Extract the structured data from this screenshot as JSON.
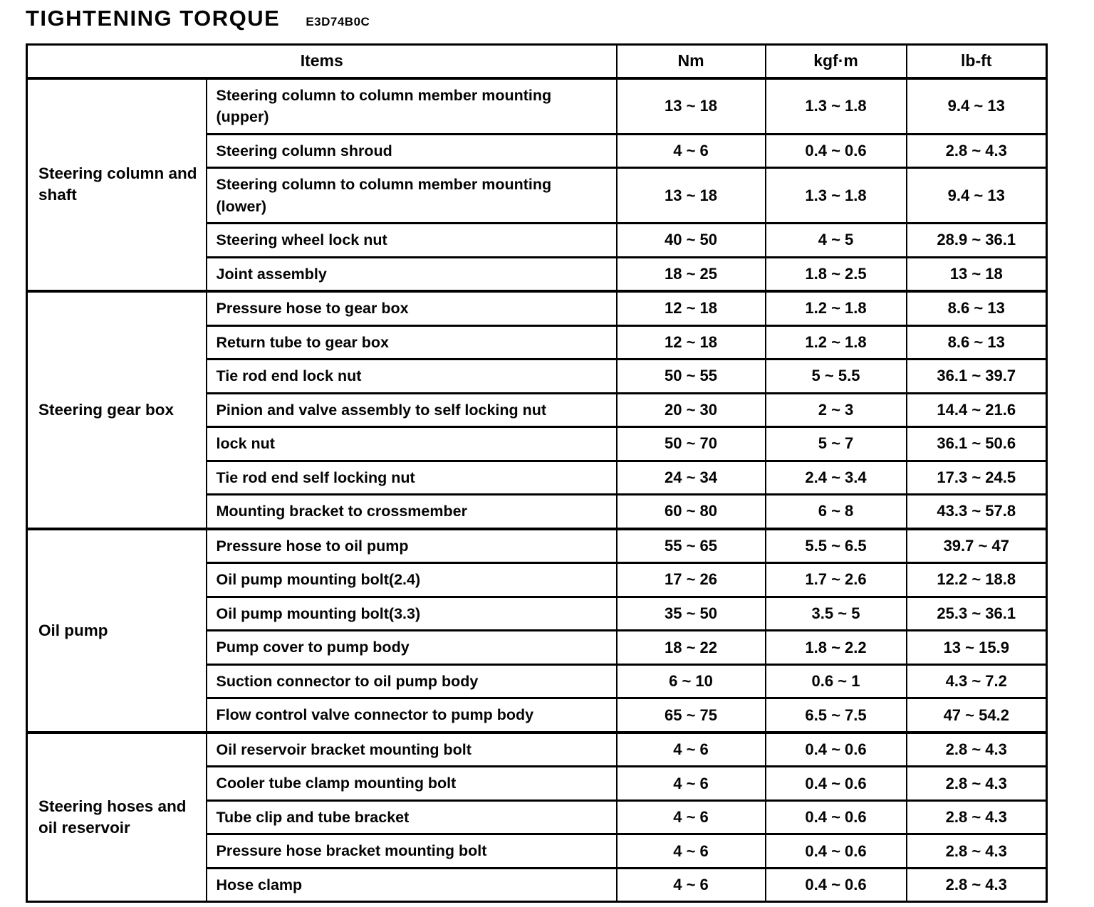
{
  "page": {
    "title": "TIGHTENING TORQUE",
    "code": "E3D74B0C"
  },
  "table": {
    "headers": {
      "items": "Items",
      "nm": "Nm",
      "kgfm": "kgf·m",
      "lbft": "lb-ft"
    },
    "groups": [
      {
        "category": "Steering column and shaft",
        "rows": [
          {
            "item": "Steering column to column member mounting (upper)",
            "nm": "13 ~ 18",
            "kgfm": "1.3 ~ 1.8",
            "lbft": "9.4 ~ 13"
          },
          {
            "item": "Steering column shroud",
            "nm": "4 ~ 6",
            "kgfm": "0.4 ~ 0.6",
            "lbft": "2.8 ~ 4.3"
          },
          {
            "item": "Steering column to column member mounting (lower)",
            "nm": "13 ~ 18",
            "kgfm": "1.3 ~ 1.8",
            "lbft": "9.4 ~ 13"
          },
          {
            "item": "Steering wheel lock nut",
            "nm": "40 ~ 50",
            "kgfm": "4 ~ 5",
            "lbft": "28.9 ~ 36.1"
          },
          {
            "item": "Joint assembly",
            "nm": "18 ~ 25",
            "kgfm": "1.8 ~ 2.5",
            "lbft": "13 ~ 18"
          }
        ]
      },
      {
        "category": "Steering gear box",
        "rows": [
          {
            "item": "Pressure hose to gear box",
            "nm": "12 ~ 18",
            "kgfm": "1.2 ~ 1.8",
            "lbft": "8.6 ~ 13"
          },
          {
            "item": "Return tube to gear box",
            "nm": "12 ~ 18",
            "kgfm": "1.2 ~ 1.8",
            "lbft": "8.6 ~ 13"
          },
          {
            "item": "Tie rod end lock nut",
            "nm": "50 ~ 55",
            "kgfm": "5 ~ 5.5",
            "lbft": "36.1 ~ 39.7"
          },
          {
            "item": "Pinion and valve assembly to self locking nut",
            "nm": "20 ~ 30",
            "kgfm": "2 ~ 3",
            "lbft": "14.4 ~ 21.6"
          },
          {
            "item": "lock nut",
            "nm": "50 ~ 70",
            "kgfm": "5 ~ 7",
            "lbft": "36.1 ~ 50.6"
          },
          {
            "item": "Tie rod end self locking nut",
            "nm": "24 ~ 34",
            "kgfm": "2.4 ~ 3.4",
            "lbft": "17.3 ~ 24.5"
          },
          {
            "item": "Mounting bracket to crossmember",
            "nm": "60 ~ 80",
            "kgfm": "6 ~ 8",
            "lbft": "43.3 ~ 57.8"
          }
        ]
      },
      {
        "category": "Oil pump",
        "rows": [
          {
            "item": "Pressure hose to oil pump",
            "nm": "55 ~ 65",
            "kgfm": "5.5 ~ 6.5",
            "lbft": "39.7 ~ 47"
          },
          {
            "item": "Oil pump mounting bolt(2.4)",
            "nm": "17 ~ 26",
            "kgfm": "1.7 ~ 2.6",
            "lbft": "12.2 ~ 18.8"
          },
          {
            "item": "Oil pump mounting bolt(3.3)",
            "nm": "35 ~ 50",
            "kgfm": "3.5 ~ 5",
            "lbft": "25.3 ~ 36.1"
          },
          {
            "item": "Pump cover to pump body",
            "nm": "18 ~ 22",
            "kgfm": "1.8 ~ 2.2",
            "lbft": "13 ~ 15.9"
          },
          {
            "item": "Suction connector to oil pump body",
            "nm": "6 ~ 10",
            "kgfm": "0.6 ~ 1",
            "lbft": "4.3 ~ 7.2"
          },
          {
            "item": "Flow control valve connector to pump body",
            "nm": "65 ~ 75",
            "kgfm": "6.5 ~ 7.5",
            "lbft": "47 ~ 54.2"
          }
        ]
      },
      {
        "category": "Steering hoses and oil reservoir",
        "rows": [
          {
            "item": "Oil reservoir bracket mounting bolt",
            "nm": "4 ~ 6",
            "kgfm": "0.4 ~ 0.6",
            "lbft": "2.8 ~ 4.3"
          },
          {
            "item": "Cooler tube clamp mounting bolt",
            "nm": "4 ~ 6",
            "kgfm": "0.4 ~ 0.6",
            "lbft": "2.8 ~ 4.3"
          },
          {
            "item": "Tube clip and tube bracket",
            "nm": "4 ~ 6",
            "kgfm": "0.4 ~ 0.6",
            "lbft": "2.8 ~ 4.3"
          },
          {
            "item": "Pressure hose bracket mounting bolt",
            "nm": "4 ~ 6",
            "kgfm": "0.4 ~ 0.6",
            "lbft": "2.8 ~ 4.3"
          },
          {
            "item": "Hose clamp",
            "nm": "4 ~ 6",
            "kgfm": "0.4 ~ 0.6",
            "lbft": "2.8 ~ 4.3"
          }
        ]
      }
    ]
  }
}
